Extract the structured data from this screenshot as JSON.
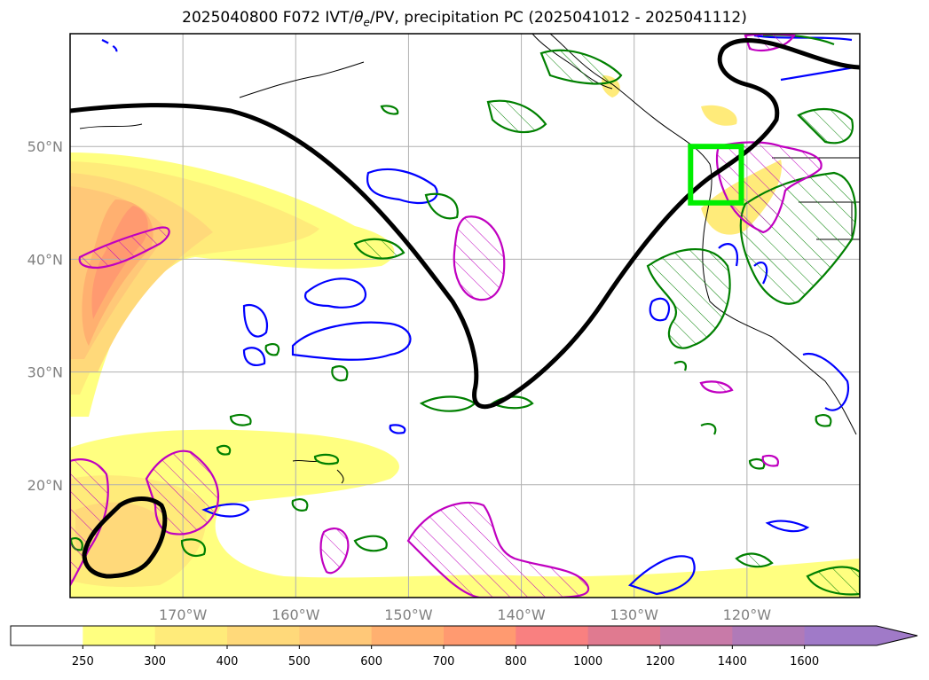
{
  "chart_data": {
    "type": "map",
    "title_parts": {
      "prefix": "2025040800 F072 IVT/",
      "theta": "θ",
      "sub": "e",
      "suffix": "/PV, precipitation PC (2025041012 - 2025041112)"
    },
    "lon_range": [
      -180,
      -110
    ],
    "lat_range": [
      10,
      60
    ],
    "lat_ticks": [
      {
        "value": 50,
        "label": "50°N"
      },
      {
        "value": 40,
        "label": "40°N"
      },
      {
        "value": 30,
        "label": "30°N"
      },
      {
        "value": 20,
        "label": "20°N"
      }
    ],
    "lon_ticks": [
      {
        "value": -170,
        "label": "170°W"
      },
      {
        "value": -160,
        "label": "160°W"
      },
      {
        "value": -150,
        "label": "150°W"
      },
      {
        "value": -140,
        "label": "140°W"
      },
      {
        "value": -130,
        "label": "130°W"
      },
      {
        "value": -120,
        "label": "120°W"
      }
    ],
    "grid": true,
    "colorbar": {
      "levels": [
        250,
        300,
        400,
        500,
        600,
        700,
        800,
        1000,
        1200,
        1400,
        1600
      ],
      "labels": [
        "250",
        "300",
        "400",
        "500",
        "600",
        "700",
        "800",
        "1000",
        "1200",
        "1400",
        "1600"
      ],
      "colors": [
        "#ffffff",
        "#ffff80",
        "#ffeb7a",
        "#ffd97a",
        "#ffc878",
        "#ffb070",
        "#ff9a70",
        "#f98080",
        "#e07a90",
        "#c87aa8",
        "#b07ab8",
        "#a07ac8"
      ],
      "extend": "max"
    },
    "box": {
      "lon": [
        -125,
        -120.5
      ],
      "lat": [
        45,
        50
      ],
      "color": "#00ee00"
    },
    "colors": {
      "pv_contour": "#000000",
      "theta_e_contour": "#0000ff",
      "precip_contour": "#008000",
      "pc_contour": "#c000c0"
    }
  }
}
